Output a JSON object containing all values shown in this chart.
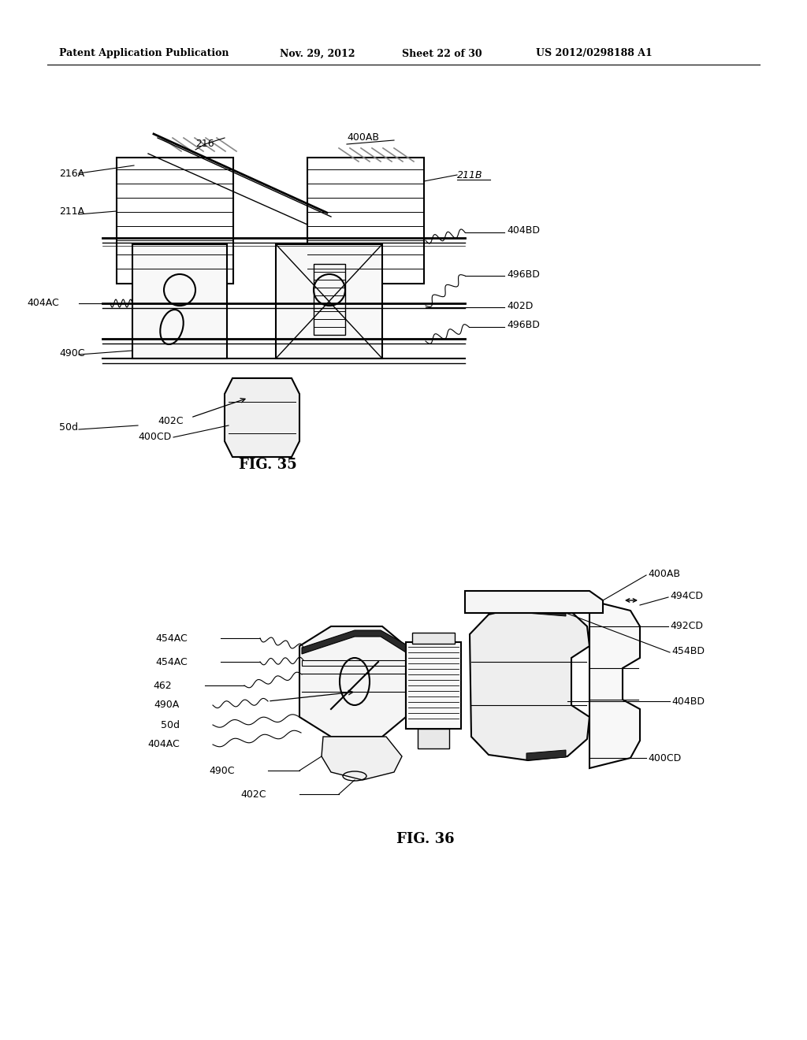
{
  "bg_color": "#ffffff",
  "header_text": "Patent Application Publication",
  "header_date": "Nov. 29, 2012",
  "header_sheet": "Sheet 22 of 30",
  "header_patent": "US 2012/0298188 A1",
  "fig35_label": "FIG. 35",
  "fig36_label": "FIG. 36",
  "line_color": "#000000",
  "gray_color": "#888888",
  "light_gray": "#cccccc"
}
